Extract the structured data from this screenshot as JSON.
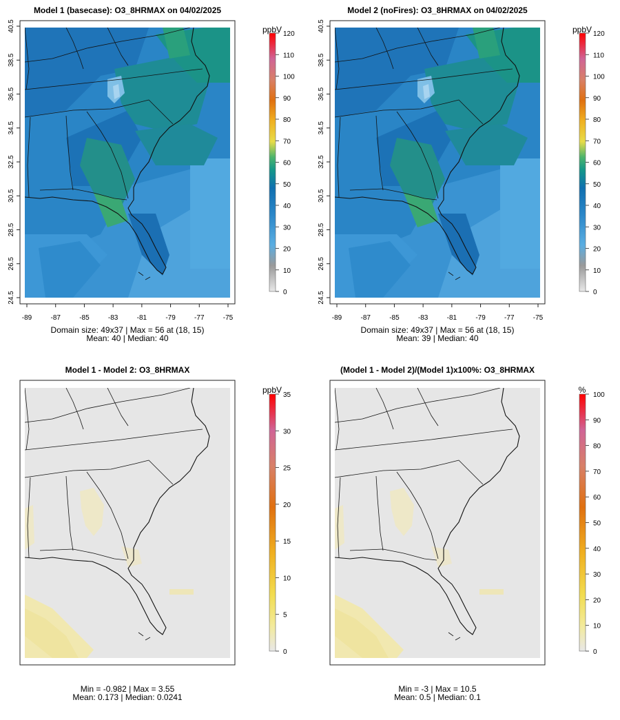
{
  "panels": [
    {
      "id": "p1",
      "title": "Model 1 (basecase): O3_8HRMAX on 04/02/2025",
      "legend_unit": "ppbV",
      "legend_ticks": [
        "0",
        "10",
        "20",
        "30",
        "40",
        "50",
        "60",
        "70",
        "80",
        "90",
        "100",
        "110",
        "120"
      ],
      "legend_max": 120,
      "x_ticks": [
        "-89",
        "-87",
        "-85",
        "-83",
        "-81",
        "-79",
        "-77",
        "-75"
      ],
      "y_ticks": [
        "24.5",
        "26.5",
        "28.5",
        "30.5",
        "32.5",
        "34.5",
        "36.5",
        "38.5",
        "40.5"
      ],
      "stat_line1": "Domain size: 49x37 | Max = 56 at (18, 15)",
      "stat_line2": "Mean: 40 |  Median: 40",
      "field": "ozone",
      "domain_size": "49x37",
      "max_value": 56,
      "max_location": [
        18,
        15
      ],
      "mean": 40,
      "median": 40
    },
    {
      "id": "p2",
      "title": "Model 2 (noFires): O3_8HRMAX on 04/02/2025",
      "legend_unit": "ppbV",
      "legend_ticks": [
        "0",
        "10",
        "20",
        "30",
        "40",
        "50",
        "60",
        "70",
        "80",
        "90",
        "100",
        "110",
        "120"
      ],
      "legend_max": 120,
      "x_ticks": [
        "-89",
        "-87",
        "-85",
        "-83",
        "-81",
        "-79",
        "-77",
        "-75"
      ],
      "y_ticks": [
        "24.5",
        "26.5",
        "28.5",
        "30.5",
        "32.5",
        "34.5",
        "36.5",
        "38.5",
        "40.5"
      ],
      "stat_line1": "Domain size: 49x37 | Max = 56 at (18, 15)",
      "stat_line2": "Mean: 39 |  Median: 40",
      "field": "ozone",
      "domain_size": "49x37",
      "max_value": 56,
      "max_location": [
        18,
        15
      ],
      "mean": 39,
      "median": 40
    },
    {
      "id": "p3",
      "title": "Model 1 - Model 2: O3_8HRMAX",
      "legend_unit": "ppbV",
      "legend_ticks": [
        "0",
        "5",
        "10",
        "15",
        "20",
        "25",
        "30",
        "35"
      ],
      "legend_max": 35,
      "x_ticks": [],
      "y_ticks": [],
      "stat_line1": "Min = -0.982 | Max = 3.55",
      "stat_line2": "Mean: 0.173 |  Median: 0.0241",
      "field": "diff",
      "min_value": -0.982,
      "max_value": 3.55,
      "mean": 0.173,
      "median": 0.0241
    },
    {
      "id": "p4",
      "title": "(Model 1 - Model 2)/(Model 1)x100%: O3_8HRMAX",
      "legend_unit": "%",
      "legend_ticks": [
        "0",
        "10",
        "20",
        "30",
        "40",
        "50",
        "60",
        "70",
        "80",
        "90",
        "100"
      ],
      "legend_max": 100,
      "x_ticks": [],
      "y_ticks": [],
      "stat_line1": "Min = -3 | Max = 10.5",
      "stat_line2": "Mean: 0.5 |  Median: 0.1",
      "field": "pct",
      "min_value": -3,
      "max_value": 10.5,
      "mean": 0.5,
      "median": 0.1
    }
  ],
  "colors": {
    "ozone_deep": "#2e86c1",
    "ozone_mid": "#1f6eb5",
    "ozone_light": "#58aee0",
    "ozone_green": "#2f9e8a",
    "diff_bg": "#e6e6e6",
    "diff_yellow": "#f2e6a0",
    "colorbar_stops": [
      "#d9d9d9",
      "#9e9e9e",
      "#56a8e0",
      "#1e78be",
      "#13958a",
      "#4fb36a",
      "#e9d84a",
      "#f0a020",
      "#e06a10",
      "#d8806a",
      "#d06090",
      "#e04070",
      "#ff0000"
    ]
  }
}
